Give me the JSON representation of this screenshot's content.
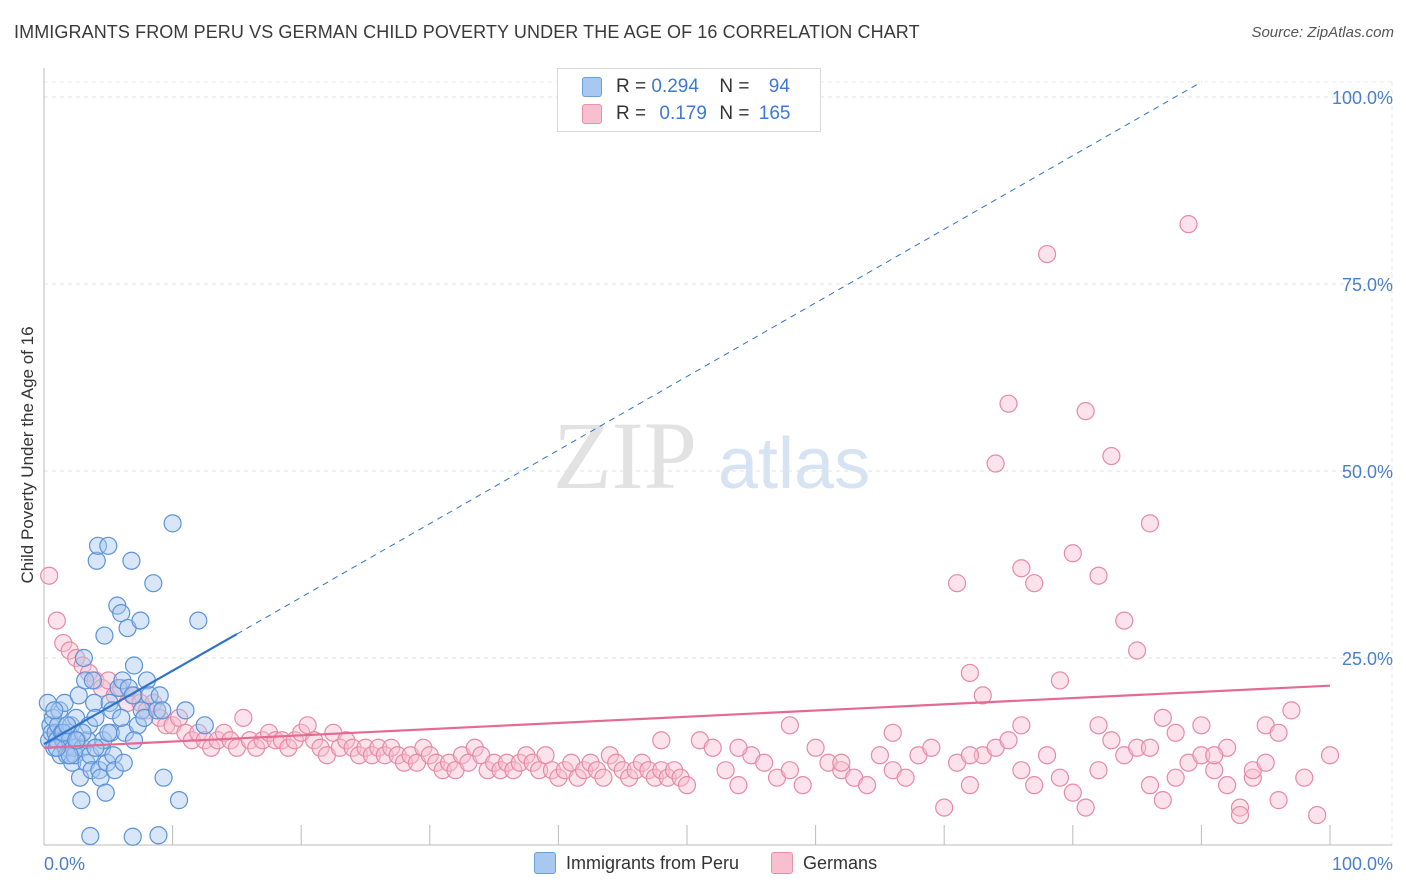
{
  "header": {
    "title": "IMMIGRANTS FROM PERU VS GERMAN CHILD POVERTY UNDER THE AGE OF 16 CORRELATION CHART",
    "source": "Source: ZipAtlas.com"
  },
  "watermark": {
    "zip": "ZIP",
    "atlas": "atlas"
  },
  "legend": {
    "rows": [
      {
        "r_label": "R =",
        "r_value": "0.294",
        "n_label": "N =",
        "n_value": "94",
        "color": "#a8c8f0",
        "stroke": "#6a9fdd"
      },
      {
        "r_label": "R =",
        "r_value": "0.179",
        "n_label": "N =",
        "n_value": "165",
        "color": "#f8bfd0",
        "stroke": "#e890a8"
      }
    ]
  },
  "bottom_legend": [
    {
      "label": "Immigrants from Peru",
      "color": "#a8c8f0",
      "stroke": "#6a9fdd"
    },
    {
      "label": "Germans",
      "color": "#f8bfd0",
      "stroke": "#e890a8"
    }
  ],
  "chart_data": {
    "type": "scatter",
    "title": "IMMIGRANTS FROM PERU VS GERMAN CHILD POVERTY UNDER THE AGE OF 16 CORRELATION CHART",
    "xlabel": "",
    "ylabel": "Child Poverty Under the Age of 16",
    "xlim": [
      0,
      100
    ],
    "ylim": [
      0,
      102
    ],
    "x_tick_labels": [
      {
        "value": 0,
        "label": "0.0%"
      },
      {
        "value": 100,
        "label": "100.0%"
      }
    ],
    "y_tick_labels": [
      {
        "value": 25,
        "label": "25.0%"
      },
      {
        "value": 50,
        "label": "50.0%"
      },
      {
        "value": 75,
        "label": "75.0%"
      },
      {
        "value": 100,
        "label": "100.0%"
      }
    ],
    "colors": {
      "peru_fill": "#a8c8f0",
      "peru_stroke": "#5b93d8",
      "german_fill": "#f8bfd0",
      "german_stroke": "#e68aa6",
      "peru_line": "#2f73c9",
      "german_line": "#e46a94"
    },
    "series": [
      {
        "name": "Immigrants from Peru",
        "trend": {
          "x0": 0,
          "y0": 13.5,
          "x1": 15,
          "y1": 28.2,
          "x_dash_end": 90,
          "y_dash_end": 102
        },
        "points": [
          [
            0.3,
            19
          ],
          [
            0.4,
            14
          ],
          [
            0.5,
            16
          ],
          [
            0.6,
            15
          ],
          [
            0.7,
            17
          ],
          [
            0.8,
            13
          ],
          [
            0.9,
            15
          ],
          [
            1,
            14
          ],
          [
            1.1,
            16
          ],
          [
            1.2,
            18
          ],
          [
            1.3,
            12
          ],
          [
            1.4,
            15
          ],
          [
            1.5,
            14
          ],
          [
            1.6,
            19
          ],
          [
            1.7,
            13
          ],
          [
            1.8,
            12
          ],
          [
            1.9,
            15
          ],
          [
            2,
            14
          ],
          [
            2.1,
            16
          ],
          [
            2.2,
            11
          ],
          [
            2.3,
            13
          ],
          [
            2.4,
            12
          ],
          [
            2.5,
            17
          ],
          [
            2.6,
            14
          ],
          [
            2.7,
            20
          ],
          [
            2.8,
            9
          ],
          [
            2.9,
            6
          ],
          [
            3,
            13
          ],
          [
            3.1,
            25
          ],
          [
            3.2,
            22
          ],
          [
            3.3,
            11
          ],
          [
            3.4,
            14
          ],
          [
            3.5,
            16
          ],
          [
            3.6,
            12
          ],
          [
            3.7,
            10
          ],
          [
            3.8,
            22
          ],
          [
            3.9,
            19
          ],
          [
            4,
            17
          ],
          [
            4.1,
            38
          ],
          [
            4.2,
            40
          ],
          [
            4.3,
            10
          ],
          [
            4.4,
            9
          ],
          [
            4.5,
            13
          ],
          [
            4.6,
            14
          ],
          [
            4.7,
            28
          ],
          [
            4.8,
            7
          ],
          [
            4.9,
            11
          ],
          [
            5,
            40
          ],
          [
            5.1,
            19
          ],
          [
            5.2,
            15
          ],
          [
            5.3,
            18
          ],
          [
            5.4,
            12
          ],
          [
            5.5,
            10
          ],
          [
            5.7,
            32
          ],
          [
            5.8,
            21
          ],
          [
            6,
            31
          ],
          [
            6.1,
            22
          ],
          [
            6.2,
            11
          ],
          [
            6.3,
            15
          ],
          [
            6.5,
            29
          ],
          [
            6.6,
            21
          ],
          [
            6.8,
            38
          ],
          [
            6.9,
            20
          ],
          [
            7,
            24
          ],
          [
            7.3,
            16
          ],
          [
            7.5,
            30
          ],
          [
            7.6,
            18
          ],
          [
            7.8,
            17
          ],
          [
            8,
            22
          ],
          [
            8.2,
            20
          ],
          [
            8.5,
            35
          ],
          [
            8.8,
            18
          ],
          [
            9,
            20
          ],
          [
            9.2,
            18
          ],
          [
            10,
            43
          ],
          [
            12,
            30
          ],
          [
            9.3,
            9
          ],
          [
            10.5,
            6
          ],
          [
            11,
            18
          ],
          [
            12.5,
            16
          ],
          [
            2,
            12
          ],
          [
            1,
            13
          ],
          [
            3,
            15
          ],
          [
            4,
            13
          ],
          [
            5,
            15
          ],
          [
            6,
            17
          ],
          [
            7,
            14
          ],
          [
            3.6,
            1.2
          ],
          [
            6.9,
            1.1
          ],
          [
            8.9,
            1.3
          ],
          [
            1.5,
            15
          ],
          [
            2.5,
            14
          ],
          [
            0.8,
            18
          ],
          [
            1.8,
            16
          ]
        ]
      },
      {
        "name": "Germans",
        "trend": {
          "x0": 0,
          "y0": 13.0,
          "x1": 100,
          "y1": 21.3
        },
        "points": [
          [
            0.4,
            36
          ],
          [
            1,
            30
          ],
          [
            1.5,
            27
          ],
          [
            2,
            26
          ],
          [
            2.5,
            25
          ],
          [
            3,
            24
          ],
          [
            3.5,
            23
          ],
          [
            4,
            22
          ],
          [
            4.5,
            21
          ],
          [
            5,
            22
          ],
          [
            5.5,
            20
          ],
          [
            6,
            21
          ],
          [
            6.5,
            19
          ],
          [
            7,
            20
          ],
          [
            7.5,
            19
          ],
          [
            8,
            18
          ],
          [
            8.5,
            19
          ],
          [
            9,
            17
          ],
          [
            9.5,
            16
          ],
          [
            10,
            16
          ],
          [
            10.5,
            17
          ],
          [
            11,
            15
          ],
          [
            11.5,
            14
          ],
          [
            12,
            15
          ],
          [
            12.5,
            14
          ],
          [
            13,
            13
          ],
          [
            13.5,
            14
          ],
          [
            14,
            15
          ],
          [
            14.5,
            14
          ],
          [
            15,
            13
          ],
          [
            15.5,
            17
          ],
          [
            16,
            14
          ],
          [
            16.5,
            13
          ],
          [
            17,
            14
          ],
          [
            17.5,
            15
          ],
          [
            18,
            14
          ],
          [
            18.5,
            14
          ],
          [
            19,
            13
          ],
          [
            19.5,
            14
          ],
          [
            20,
            15
          ],
          [
            20.5,
            16
          ],
          [
            21,
            14
          ],
          [
            21.5,
            13
          ],
          [
            22,
            12
          ],
          [
            22.5,
            15
          ],
          [
            23,
            13
          ],
          [
            23.5,
            14
          ],
          [
            24,
            13
          ],
          [
            24.5,
            12
          ],
          [
            25,
            13
          ],
          [
            25.5,
            12
          ],
          [
            26,
            13
          ],
          [
            26.5,
            12
          ],
          [
            27,
            13
          ],
          [
            27.5,
            12
          ],
          [
            28,
            11
          ],
          [
            28.5,
            12
          ],
          [
            29,
            11
          ],
          [
            29.5,
            13
          ],
          [
            30,
            12
          ],
          [
            30.5,
            11
          ],
          [
            31,
            10
          ],
          [
            31.5,
            11
          ],
          [
            32,
            10
          ],
          [
            32.5,
            12
          ],
          [
            33,
            11
          ],
          [
            33.5,
            13
          ],
          [
            34,
            12
          ],
          [
            34.5,
            10
          ],
          [
            35,
            11
          ],
          [
            35.5,
            10
          ],
          [
            36,
            11
          ],
          [
            36.5,
            10
          ],
          [
            37,
            11
          ],
          [
            37.5,
            12
          ],
          [
            38,
            11
          ],
          [
            38.5,
            10
          ],
          [
            39,
            12
          ],
          [
            39.5,
            10
          ],
          [
            40,
            9
          ],
          [
            40.5,
            10
          ],
          [
            41,
            11
          ],
          [
            41.5,
            9
          ],
          [
            42,
            10
          ],
          [
            42.5,
            11
          ],
          [
            43,
            10
          ],
          [
            43.5,
            9
          ],
          [
            44,
            12
          ],
          [
            44.5,
            11
          ],
          [
            45,
            10
          ],
          [
            45.5,
            9
          ],
          [
            46,
            10
          ],
          [
            46.5,
            11
          ],
          [
            47,
            10
          ],
          [
            47.5,
            9
          ],
          [
            48,
            10
          ],
          [
            48.5,
            9
          ],
          [
            49,
            10
          ],
          [
            49.5,
            9
          ],
          [
            50,
            8
          ],
          [
            51,
            14
          ],
          [
            52,
            13
          ],
          [
            53,
            10
          ],
          [
            54,
            8
          ],
          [
            55,
            12
          ],
          [
            56,
            11
          ],
          [
            57,
            9
          ],
          [
            58,
            10
          ],
          [
            59,
            8
          ],
          [
            60,
            13
          ],
          [
            61,
            11
          ],
          [
            62,
            10
          ],
          [
            63,
            9
          ],
          [
            64,
            8
          ],
          [
            65,
            12
          ],
          [
            66,
            10
          ],
          [
            67,
            9
          ],
          [
            68,
            12
          ],
          [
            69,
            13
          ],
          [
            70,
            5
          ],
          [
            71,
            11
          ],
          [
            72,
            8
          ],
          [
            73,
            12
          ],
          [
            74,
            13
          ],
          [
            75,
            14
          ],
          [
            76,
            10
          ],
          [
            77,
            8
          ],
          [
            78,
            12
          ],
          [
            79,
            9
          ],
          [
            80,
            7
          ],
          [
            81,
            5
          ],
          [
            82,
            16
          ],
          [
            83,
            14
          ],
          [
            84,
            12
          ],
          [
            85,
            13
          ],
          [
            86,
            8
          ],
          [
            87,
            6
          ],
          [
            88,
            15
          ],
          [
            89,
            11
          ],
          [
            90,
            12
          ],
          [
            91,
            10
          ],
          [
            92,
            13
          ],
          [
            93,
            5
          ],
          [
            94,
            9
          ],
          [
            95,
            16
          ],
          [
            96,
            6
          ],
          [
            97,
            18
          ],
          [
            98,
            9
          ],
          [
            99,
            4
          ],
          [
            100,
            12
          ],
          [
            48,
            14
          ],
          [
            58,
            16
          ],
          [
            66,
            15
          ],
          [
            76,
            16
          ],
          [
            86,
            13
          ],
          [
            96,
            15
          ],
          [
            54,
            13
          ],
          [
            62,
            11
          ],
          [
            72,
            12
          ],
          [
            82,
            10
          ],
          [
            71,
            35
          ],
          [
            72,
            23
          ],
          [
            73,
            20
          ],
          [
            74,
            51
          ],
          [
            75,
            59
          ],
          [
            76,
            37
          ],
          [
            77,
            35
          ],
          [
            78,
            79
          ],
          [
            79,
            22
          ],
          [
            80,
            39
          ],
          [
            81,
            58
          ],
          [
            82,
            36
          ],
          [
            83,
            52
          ],
          [
            84,
            30
          ],
          [
            85,
            26
          ],
          [
            86,
            43
          ],
          [
            87,
            17
          ],
          [
            88,
            9
          ],
          [
            89,
            83
          ],
          [
            90,
            16
          ],
          [
            91,
            12
          ],
          [
            92,
            8
          ],
          [
            93,
            4
          ],
          [
            94,
            10
          ],
          [
            95,
            11
          ]
        ]
      }
    ]
  }
}
